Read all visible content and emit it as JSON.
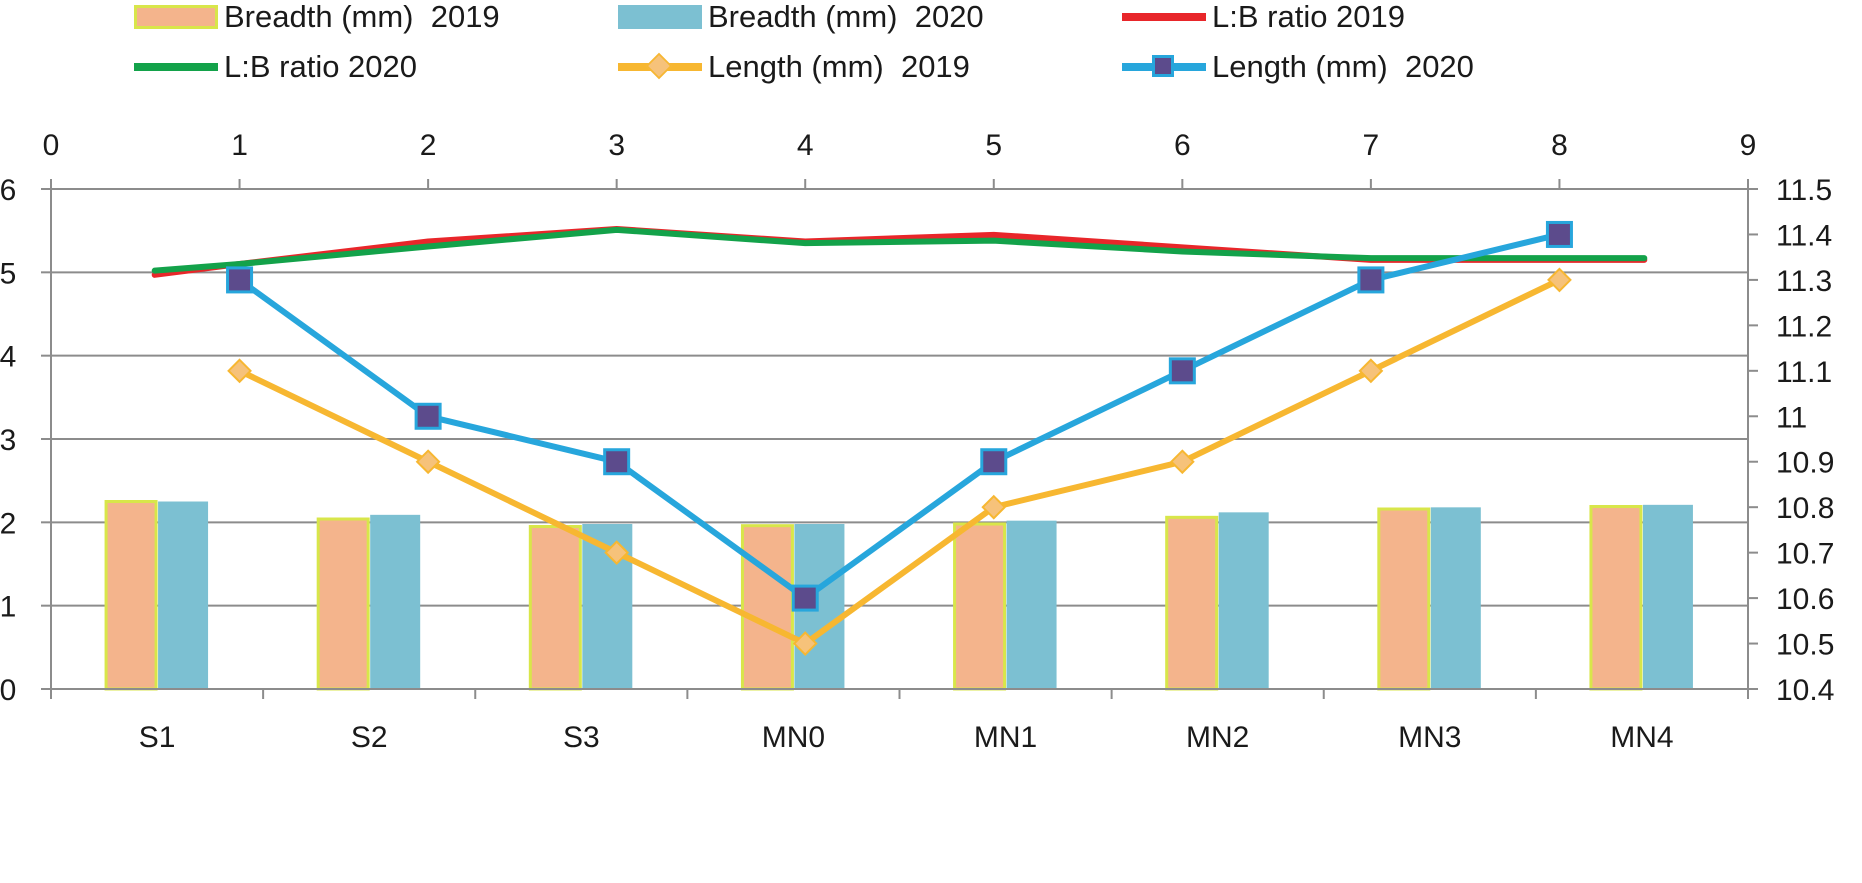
{
  "chart_data": {
    "type": "bar",
    "title": "",
    "categories": [
      "S1",
      "S2",
      "S3",
      "MN0",
      "MN1",
      "MN2",
      "MN3",
      "MN4"
    ],
    "series": [
      {
        "name": "Breadth (mm)  2019",
        "kind": "bar",
        "axis": "left",
        "color": "#f4b48c",
        "edge": "#d8e64a",
        "values": [
          2.25,
          2.04,
          1.95,
          1.96,
          1.98,
          2.06,
          2.16,
          2.19
        ]
      },
      {
        "name": "Breadth (mm)  2020",
        "kind": "bar",
        "axis": "left",
        "color": "#7cc0d2",
        "edge": "#7cc0d2",
        "values": [
          2.25,
          2.09,
          1.98,
          1.98,
          2.02,
          2.12,
          2.18,
          2.21
        ]
      },
      {
        "name": "L:B ratio 2019",
        "kind": "line",
        "axis": "left",
        "color": "#e8262a",
        "x": [
          0.55,
          1,
          2,
          3,
          4,
          5,
          6,
          7,
          8.45
        ],
        "values": [
          4.97,
          5.1,
          5.37,
          5.52,
          5.37,
          5.45,
          5.3,
          5.15,
          5.15
        ]
      },
      {
        "name": "L:B ratio 2020",
        "kind": "line",
        "axis": "left",
        "color": "#13a24a",
        "x": [
          0.55,
          1,
          2,
          3,
          4,
          5,
          6,
          7,
          8.45
        ],
        "values": [
          5.02,
          5.1,
          5.31,
          5.51,
          5.35,
          5.38,
          5.25,
          5.17,
          5.17
        ]
      },
      {
        "name": "Length (mm)  2019",
        "kind": "line",
        "axis": "right",
        "marker": "diamond",
        "color": "#f7b731",
        "x": [
          1,
          2,
          3,
          4,
          5,
          6,
          7,
          8
        ],
        "values": [
          11.1,
          10.9,
          10.7,
          10.5,
          10.8,
          10.9,
          11.1,
          11.3
        ]
      },
      {
        "name": "Length (mm)  2020",
        "kind": "line",
        "axis": "right",
        "marker": "square",
        "color": "#27a6dc",
        "x": [
          1,
          2,
          3,
          4,
          5,
          6,
          7,
          8
        ],
        "values": [
          11.3,
          11.0,
          10.9,
          10.6,
          10.9,
          11.1,
          11.3,
          11.4
        ]
      }
    ],
    "ylim": [
      0,
      6
    ],
    "yticks": [
      "0",
      "1",
      "2",
      "3",
      "4",
      "5",
      "6"
    ],
    "y2lim": [
      10.4,
      11.5
    ],
    "y2ticks": [
      "10.4",
      "10.5",
      "10.6",
      "10.7",
      "10.8",
      "10.9",
      "11",
      "11.1",
      "11.2",
      "11.3",
      "11.4",
      "11.5"
    ],
    "x2lim": [
      0,
      9
    ],
    "x2ticks": [
      "0",
      "1",
      "2",
      "3",
      "4",
      "5",
      "6",
      "7",
      "8",
      "9"
    ],
    "grid": true,
    "legend_position": "top",
    "marker_fill": "#5c4b8c"
  }
}
